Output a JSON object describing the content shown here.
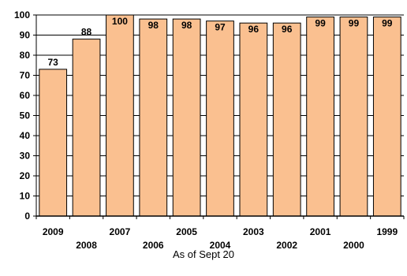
{
  "chart_data": {
    "type": "bar",
    "categories": [
      "2009",
      "2008",
      "2007",
      "2006",
      "2005",
      "2004",
      "2003",
      "2002",
      "2001",
      "2000",
      "1999"
    ],
    "values": [
      73,
      88,
      100,
      98,
      98,
      97,
      96,
      96,
      99,
      99,
      99
    ],
    "data_labels": [
      "73",
      "88",
      "100",
      "98",
      "98",
      "97",
      "96",
      "96",
      "99",
      "99",
      "99"
    ],
    "xlabel": "As of Sept 20",
    "ylabel": "",
    "ylim": [
      0,
      100
    ],
    "yticks": [
      0,
      10,
      20,
      30,
      40,
      50,
      60,
      70,
      80,
      90,
      100
    ],
    "grid": "horizontal",
    "legend": "none",
    "colors": {
      "bar_fill": "#FAC090",
      "bar_stroke": "#000000",
      "grid": "#000000"
    }
  }
}
